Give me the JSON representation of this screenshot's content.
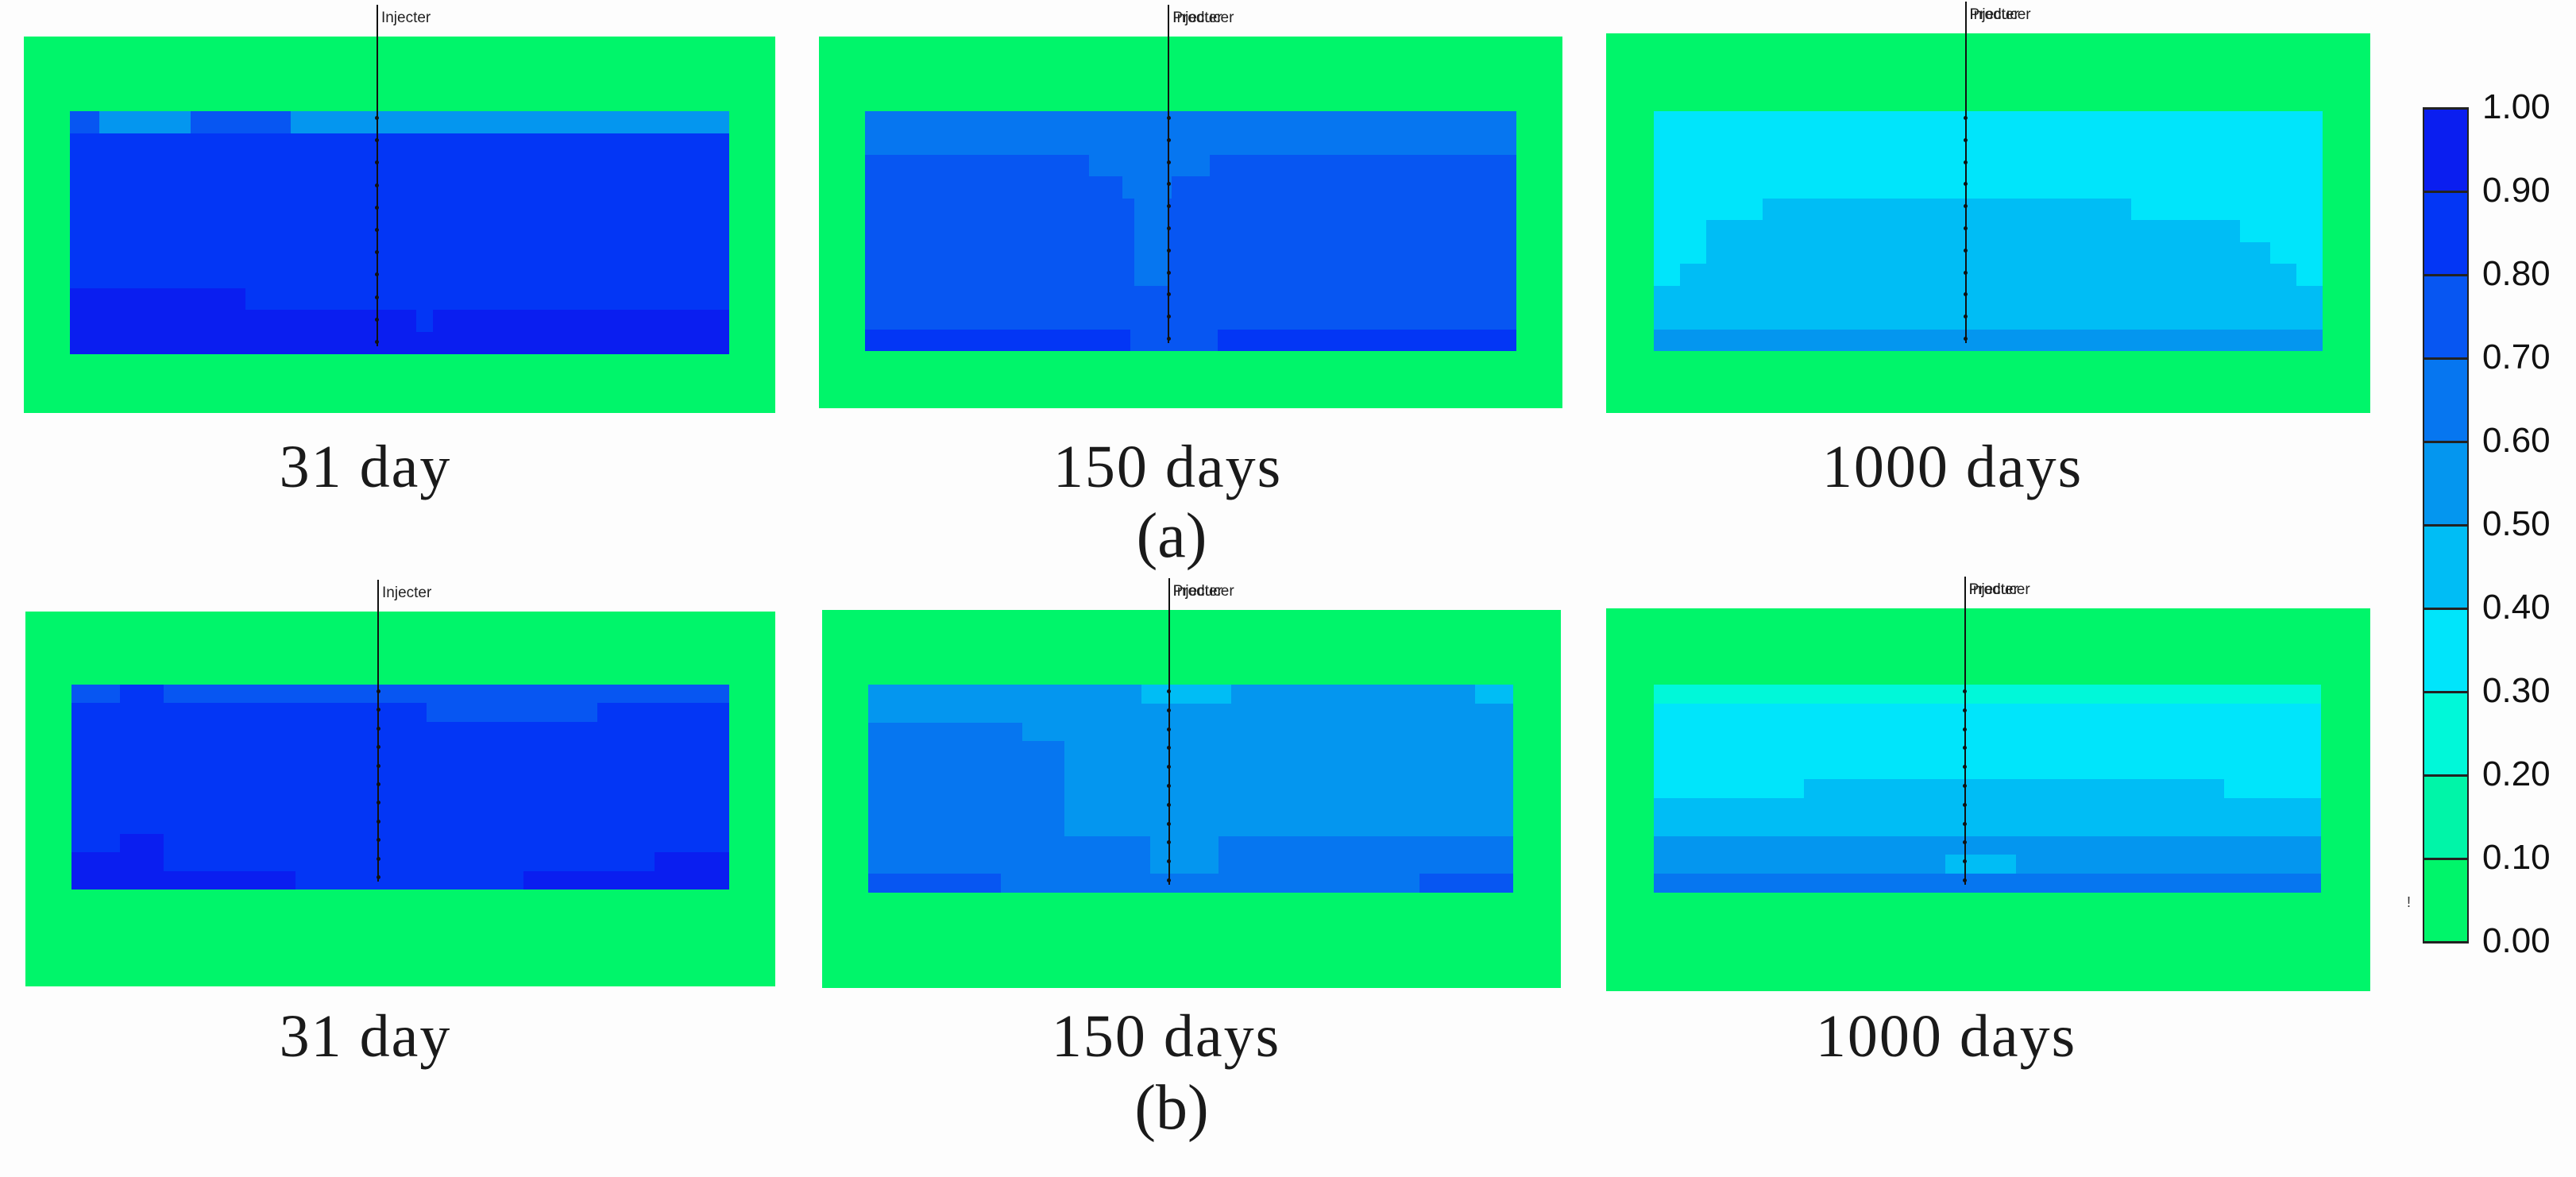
{
  "palette": {
    "c10": "#0000ee",
    "c9": "#0a1ef0",
    "c8": "#0336f5",
    "c7": "#0756f2",
    "c6": "#0676f0",
    "c5": "#0496ef",
    "c4": "#00bdf5",
    "c3": "#00e5fb",
    "c2": "#00f8d9",
    "c1": "#00f5a8",
    "c0": "#00f56a"
  },
  "legend": {
    "labels": [
      "1.00",
      "0.90",
      "0.80",
      "0.70",
      "0.60",
      "0.50",
      "0.40",
      "0.30",
      "0.20",
      "0.10",
      "0.00"
    ],
    "colors": [
      "c9",
      "c8",
      "c7",
      "c6",
      "c5",
      "c4",
      "c3",
      "c2",
      "c1",
      "c0"
    ],
    "stray_mark": "!"
  },
  "rows": [
    {
      "label": "(a)",
      "panels": [
        {
          "caption": "31 day",
          "well_labels": [
            "Injecter"
          ],
          "grid": [
            "77777775555555555555555555555777777777777777777777777555555555555555555555555555555555555555555555555555555555555555555555555555555555555555555555555555555555",
            "88888888888888888888888888888888888888888888888888888888888888888888888888888888888888888888888888888888888888888888888888888888888888888888888888888888888888",
            "88888888888888888888888888888888888888888888888888888888888888888888888888888888888888888888888888888888888888888888888888888888888888888888888888888888888888",
            "88888888888888888888888888888888888888888888888888888888888888888888888888888888888888888888888888888888888888888888888888888888888888888888888888888888888888",
            "88888888888888888888888888888888888888888888888888888888888888888888888888888888888888888888888888888888888888888888888888888888888888888888888888888888888888",
            "88888888888888888888888888888888888888888888888888888888888888888888888888888888888888888888888888888888888888888888888888888888888888888888888888888888888888",
            "88888888888888888888888888888888888888888888888888888888888888888888888888888888888888888888888888888888888888888888888888888888888888888888888888888888888888",
            "88888888888888888888888888888888888888888888888888888888888888888888888888888888888888888888888888888888888888888888888888888888888888888888888888888888888888",
            "99999999999999999999999999999999999999999988888888888888888888888888888888888888888888888888888888888888888888888888888888888888888888888888888888888888888888",
            "99999999999999999999999999999999999999999999999999999999999999999999999999999999999888899999999999999999999999999999999999999999999999999999999999999999999999",
            "99999999999999999999999999999999999999999999999999999999999999999999999999999999999999999999999999999999999999999999999999999999999999999999999999999999999999"
          ]
        },
        {
          "caption": "150 days",
          "well_labels": [
            "Injecter",
            "Producer"
          ],
          "grid": [
            "6666666666666666666666666666666666666666666666666666666666666666666666666666666666666666666666666666666666666666666666666666666666666666666666666666666666666",
            "6666666666666666666666666666666666666666666666666666666666666666666666666666666666666666666666666666666666666666666666666666666666666666666666666666666666666",
            "7777777777777777777777777777777777777777777777777777776666666666666666666666666666677777777777777777777777777777777777777777777777777777777777777777777777777",
            "7777777777777777777777777777777777777777777777777777777777777766666666666677777777777777777777777777777777777777777777777777777777777777777777777777777777777",
            "7777777777777777777777777777777777777777777777777777777777777777766666666777777777777777777777777777777777777777777777777777777777777777777777777777777777777",
            "7777777777777777777777777777777777777777777777777777777777777777766666666777777777777777777777777777777777777777777777777777777777777777777777777777777777777",
            "7777777777777777777777777777777777777777777777777777777777777777766666666777777777777777777777777777777777777777777777777777777777777777777777777777777777777",
            "7777777777777777777777777777777777777777777777777777777777777777766666666777777777777777777777777777777777777777777777777777777777777777777777777777777777777",
            "7777777777777777777777777777777777777777777777777777777777777777777777777777777777777777777777777777777777777777777777777777777777777777777777777777777777777",
            "7777777777777777777777777777777777777777777777777777777777777777777777777777777777777777777777777777777777777777777777777777777777777777777777777777777777777",
            "8888888888888888888888888888888888888888888888888888888888888888777777777777777777777888888888888888888888888888888888888888888888888888888888888888888888888"
          ]
        },
        {
          "caption": "1000 days",
          "well_labels": [
            "Injecter",
            "Producer"
          ],
          "grid": [
            "3333333333333333333333333333333333333333333333333333333333333333333333333333333333333333333333333333333333333333333333333333333333333333333333333333333333",
            "3333333333333333333333333333333333333333333333333333333333333333333333333333333333333333333333333333333333333333333333333333333333333333333333333333333333",
            "3333333333333333333333333333333333333333333333333333333333333333333333333333333333333333333333333333333333333333333333333333333333333333333333333333333333",
            "3333333333333333333333333333333333333333333333333333333333333333333333333333333333333333333333333333333333333333333333333333333333333333333333333333333333",
            "3333333333333333333333333444444444444444444444444444444444444444444444444444444444444444444444444444444444444433333333333333333333333333333333333333333333",
            "3333333333334444444444444444444444444444444444444444444444444444444444444444444444444444444444444444444444444444444444444444444444444443333333333333333333",
            "3333333333334444444444444444444444444444444444444444444444444444444444444444444444444444444444444444444444444444444444444444444444444444444444333333333333",
            "3333334444444444444444444444444444444444444444444444444444444444444444444444444444444444444444444444444444444444444444444444444444444444444444444444333333",
            "4444444444444444444444444444444444444444444444444444444444444444444444444444444444444444444444444444444444444444444444444444444444444444444444444444444444",
            "4444444444444444444444444444444444444444444444444444444444444444444444444444444444444444444444444444444444444444444444444444444444444444444444444444444444",
            "5555555555555555555555555555555555555555555555555555555555555555555555555555555555555555555555555555555555555555555555555555555555555555555555555555555555"
          ]
        }
      ]
    },
    {
      "label": "(b)",
      "panels": [
        {
          "caption": "31 day",
          "well_labels": [
            "Injecter"
          ],
          "grid": [
            "777777777778888888888777777777777777777777777777777777777777777777777777777777777777777777777777777777777777777777777777777777777777777777777777777777",
            "888888888888888888888888888888888888888888888888888888888888888888888888888888888777777777777777777777777777777777777777888888888888888888888888888888",
            "888888888888888888888888888888888888888888888888888888888888888888888888888888888888888888888888888888888888888888888888888888888888888888888888888888",
            "888888888888888888888888888888888888888888888888888888888888888888888888888888888888888888888888888888888888888888888888888888888888888888888888888888",
            "888888888888888888888888888888888888888888888888888888888888888888888888888888888888888888888888888888888888888888888888888888888888888888888888888888",
            "888888888888888888888888888888888888888888888888888888888888888888888888888888888888888888888888888888888888888888888888888888888888888888888888888888",
            "888888888888888888888888888888888888888888888888888888888888888888888888888888888888888888888888888888888888888888888888888888888888888888888888888888",
            "888888888888888888888888888888888888888888888888888888888888888888888888888888888888888888888888888888888888888888888888888888888888888888888888888888",
            "888888888889999999999888888888888888888888888888888888888888888888888888888888888888888888888888888888888888888888888888888888888888888888888888888888",
            "999999999999999999999888888888888888888888888888888888888888888888888888888888888888888888888888888888888888888888888888888888888888899999999999999999",
            "999999999999999999999999999999999999999999999999999888888888888888888888888888888888888888888888888888899999999999999999999999999999999999999999999999"
          ]
        },
        {
          "caption": "150 days",
          "well_labels": [
            "Injecter",
            "Producer"
          ],
          "grid": [
            "5555555555555555555555555555555555555555555555555555555555555555444444444444444444444555555555555555555555555555555555555555555555555555555555444444444",
            "5555555555555555555555555555555555555555555555555555555555555555555555555555555555555555555555555555555555555555555555555555555555555555555555555555555",
            "6666666666666666666666666666666666665555555555555555555555555555555555555555555555555555555555555555555555555555555555555555555555555555555555555555555",
            "6666666666666666666666666666666666666666666666555555555555555555555555555555555555555555555555555555555555555555555555555555555555555555555555555555555",
            "6666666666666666666666666666666666666666666666555555555555555555555555555555555555555555555555555555555555555555555555555555555555555555555555555555555",
            "6666666666666666666666666666666666666666666666555555555555555555555555555555555555555555555555555555555555555555555555555555555555555555555555555555555",
            "6666666666666666666666666666666666666666666666555555555555555555555555555555555555555555555555555555555555555555555555555555555555555555555555555555555",
            "6666666666666666666666666666666666666666666666555555555555555555555555555555555555555555555555555555555555555555555555555555555555555555555555555555555",
            "6666666666666666666666666666666666666666666666666666666666666666665555555555555555666666666666666666666666666666666666666666666666666666666666666666666",
            "6666666666666666666666666666666666666666666666666666666666666666665555555555555555666666666666666666666666666666666666666666666666666666666666666666666",
            "7777777777777777777777777777777666666666666666666666666666666666666666666666666666666666666666666666666666666666666666666666666667777777777777777777777"
          ]
        },
        {
          "caption": "1000 days",
          "well_labels": [
            "Injecter",
            "Producer"
          ],
          "grid": [
            "2222222222222222222222222222222222222222222222222222222222222222222222222222222222222222222222222222222222222222222222222222222222222222222222222222222",
            "3333333333333333333333333333333333333333333333333333333333333333333333333333333333333333333333333333333333333333333333333333333333333333333333333333333",
            "3333333333333333333333333333333333333333333333333333333333333333333333333333333333333333333333333333333333333333333333333333333333333333333333333333333",
            "3333333333333333333333333333333333333333333333333333333333333333333333333333333333333333333333333333333333333333333333333333333333333333333333333333333",
            "3333333333333333333333333333333333333333333333333333333333333333333333333333333333333333333333333333333333333333333333333333333333333333333333333333333",
            "3333333333333333333333333333333333444444444444444444444444444444444444444444444444444444444444444444444444444444444444444444444443333333333333333333333",
            "4444444444444444444444444444444444444444444444444444444444444444444444444444444444444444444444444444444444444444444444444444444444444444444444444444444",
            "4444444444444444444444444444444444444444444444444444444444444444444444444444444444444444444444444444444444444444444444444444444444444444444444444444444",
            "5555555555555555555555555555555555555555555555555555555555555555555555555555555555555555555555555555555555555555555555555555555555555555555555555555555",
            "5555555555555555555555555555555555555555555555555555555555555555554444444444444444555555555555555555555555555555555555555555555555555555555555555555555",
            "6666666666666666666666666666666666666666666666666666666666666666666666666666666666666666666666666666666666666666666666666666666666666666666666666666666"
          ]
        }
      ]
    }
  ]
}
